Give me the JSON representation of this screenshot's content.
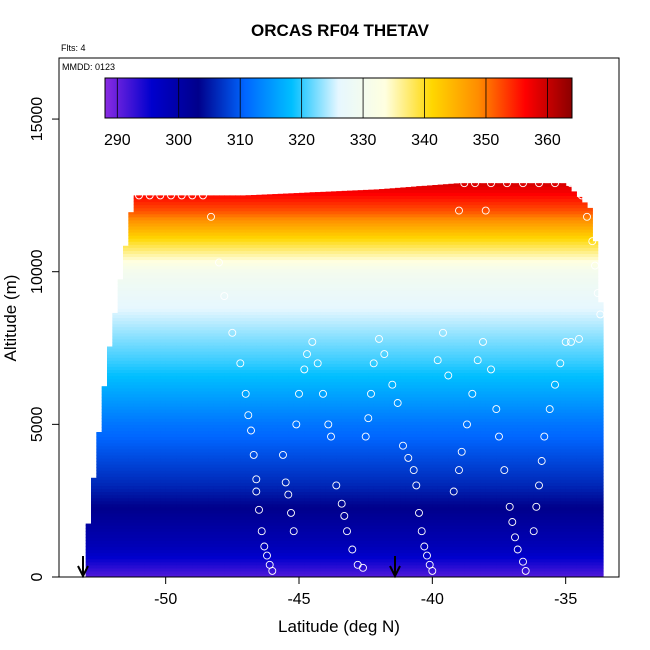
{
  "chart_data": {
    "type": "heatmap",
    "title": "ORCAS RF04 THETAV",
    "flights_note": "Flts: 4",
    "date_note": "MMDD: 0123",
    "xlabel": "Latitude (deg N)",
    "ylabel": "Altitude (m)",
    "xlim": [
      -54,
      -33
    ],
    "ylim": [
      0,
      17000
    ],
    "x_ticks": [
      -50,
      -45,
      -40,
      -35
    ],
    "x_tick_labels": [
      "-50",
      "-45",
      "-40",
      "-35"
    ],
    "y_ticks": [
      0,
      5000,
      10000,
      15000
    ],
    "y_tick_labels": [
      "0",
      "5000",
      "10000",
      "15000"
    ],
    "colorbar": {
      "min": 288,
      "max": 364,
      "ticks": [
        290,
        300,
        310,
        320,
        330,
        340,
        350,
        360
      ],
      "tick_labels": [
        "290",
        "300",
        "310",
        "320",
        "330",
        "340",
        "350",
        "360"
      ],
      "stops": [
        "#8a2be2",
        "#0000cd",
        "#00008b",
        "#0066ff",
        "#00bfff",
        "#e6f7ff",
        "#ffffe0",
        "#ffd700",
        "#ff8c00",
        "#ff0000",
        "#8b0000"
      ]
    },
    "field_profile": {
      "altitude_m": [
        0,
        1000,
        3000,
        5000,
        7000,
        8500,
        10000,
        11000,
        12000,
        13000
      ],
      "thetav_K": [
        291,
        298,
        306,
        312,
        320,
        325,
        330,
        340,
        352,
        360
      ]
    },
    "coverage_boundary": {
      "latitude_deg": [
        -53,
        -52.2,
        -51.2,
        -49.6,
        -48.2,
        -47,
        -42,
        -39,
        -37,
        -35,
        -34,
        -33.6
      ],
      "max_altitude_m": [
        1000,
        7000,
        12500,
        12500,
        12500,
        12500,
        12700,
        12900,
        12900,
        12900,
        12000,
        8000
      ]
    },
    "flight_track_points": [
      [
        -51,
        12500
      ],
      [
        -50.6,
        12500
      ],
      [
        -50.2,
        12500
      ],
      [
        -49.8,
        12500
      ],
      [
        -49.4,
        12500
      ],
      [
        -49,
        12500
      ],
      [
        -48.6,
        12500
      ],
      [
        -48.3,
        11800
      ],
      [
        -48,
        10300
      ],
      [
        -47.8,
        9200
      ],
      [
        -47.5,
        8000
      ],
      [
        -47.2,
        7000
      ],
      [
        -47,
        6000
      ],
      [
        -46.9,
        5300
      ],
      [
        -46.8,
        4800
      ],
      [
        -46.7,
        4000
      ],
      [
        -46.6,
        3200
      ],
      [
        -46.6,
        2800
      ],
      [
        -46.5,
        2200
      ],
      [
        -46.4,
        1500
      ],
      [
        -46.3,
        1000
      ],
      [
        -46.2,
        700
      ],
      [
        -46.1,
        400
      ],
      [
        -46,
        200
      ],
      [
        -45.6,
        4000
      ],
      [
        -45.5,
        3100
      ],
      [
        -45.4,
        2700
      ],
      [
        -45.3,
        2100
      ],
      [
        -45.2,
        1500
      ],
      [
        -45.1,
        5000
      ],
      [
        -45,
        6000
      ],
      [
        -44.8,
        6800
      ],
      [
        -44.7,
        7300
      ],
      [
        -44.5,
        7700
      ],
      [
        -44.3,
        7000
      ],
      [
        -44.1,
        6000
      ],
      [
        -43.9,
        5000
      ],
      [
        -43.8,
        4600
      ],
      [
        -43.6,
        3000
      ],
      [
        -43.4,
        2400
      ],
      [
        -43.3,
        2000
      ],
      [
        -43.2,
        1500
      ],
      [
        -43,
        900
      ],
      [
        -42.8,
        400
      ],
      [
        -42.6,
        300
      ],
      [
        -42.5,
        4600
      ],
      [
        -42.4,
        5200
      ],
      [
        -42.3,
        6000
      ],
      [
        -42.2,
        7000
      ],
      [
        -42,
        7800
      ],
      [
        -41.8,
        7300
      ],
      [
        -41.5,
        6300
      ],
      [
        -41.3,
        5700
      ],
      [
        -41.1,
        4300
      ],
      [
        -40.9,
        3900
      ],
      [
        -40.7,
        3500
      ],
      [
        -40.6,
        3000
      ],
      [
        -40.5,
        2100
      ],
      [
        -40.4,
        1500
      ],
      [
        -40.3,
        1000
      ],
      [
        -40.2,
        700
      ],
      [
        -40.1,
        400
      ],
      [
        -40,
        200
      ],
      [
        -39.8,
        7100
      ],
      [
        -39.6,
        8000
      ],
      [
        -39.4,
        6600
      ],
      [
        -39.2,
        2800
      ],
      [
        -39,
        3500
      ],
      [
        -38.9,
        4100
      ],
      [
        -38.7,
        5000
      ],
      [
        -38.5,
        6000
      ],
      [
        -38.3,
        7100
      ],
      [
        -38.1,
        7700
      ],
      [
        -38,
        12000
      ],
      [
        -39,
        12000
      ],
      [
        -37.8,
        6800
      ],
      [
        -37.6,
        5500
      ],
      [
        -37.5,
        4600
      ],
      [
        -37.3,
        3500
      ],
      [
        -37.1,
        2300
      ],
      [
        -37,
        1800
      ],
      [
        -36.9,
        1300
      ],
      [
        -36.8,
        900
      ],
      [
        -36.6,
        500
      ],
      [
        -36.5,
        200
      ],
      [
        -36.2,
        1500
      ],
      [
        -36.1,
        2300
      ],
      [
        -36,
        3000
      ],
      [
        -35.9,
        3800
      ],
      [
        -35.8,
        4600
      ],
      [
        -35.6,
        5500
      ],
      [
        -35.4,
        6300
      ],
      [
        -35.2,
        7000
      ],
      [
        -35,
        7700
      ],
      [
        -34.8,
        7700
      ],
      [
        -34.5,
        7800
      ],
      [
        -38.8,
        12900
      ],
      [
        -38.4,
        12900
      ],
      [
        -37.8,
        12900
      ],
      [
        -37.2,
        12900
      ],
      [
        -36.6,
        12900
      ],
      [
        -36,
        12900
      ],
      [
        -35.4,
        12900
      ],
      [
        -34.8,
        12900
      ],
      [
        -34.4,
        12500
      ],
      [
        -34.2,
        11800
      ],
      [
        -34,
        11000
      ],
      [
        -33.9,
        10200
      ],
      [
        -33.8,
        9300
      ],
      [
        -33.7,
        8600
      ]
    ],
    "markers": [
      {
        "label": "takeoff-arrow",
        "latitude_deg": -53.1
      },
      {
        "label": "landing-arrow",
        "latitude_deg": -41.4
      }
    ]
  }
}
